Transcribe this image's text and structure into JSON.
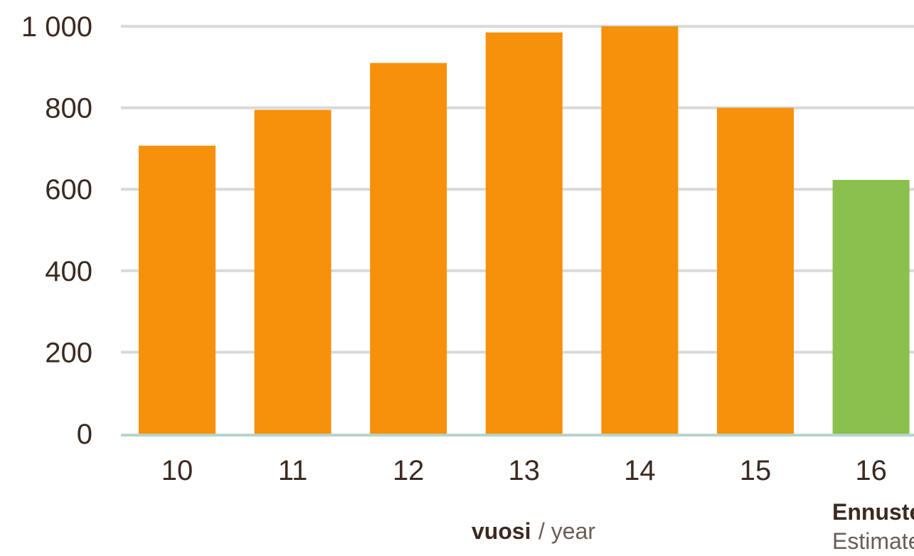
{
  "chart_data": {
    "type": "bar",
    "categories": [
      "10",
      "11",
      "12",
      "13",
      "14",
      "15",
      "16"
    ],
    "values": [
      707,
      795,
      910,
      985,
      1000,
      800,
      623
    ],
    "ylim": [
      0,
      1000
    ],
    "yticks": [
      0,
      200,
      400,
      600,
      800,
      1000
    ],
    "ytick_labels": [
      "0",
      "200",
      "400",
      "600",
      "800",
      "1 000"
    ],
    "grid": true,
    "colors": {
      "actual": "#F7900A",
      "estimate": "#8BBF4E",
      "grid": "#D9D9D9",
      "baseline": "#B7D3CC",
      "text": "#3B2A20"
    },
    "xlabel_bold": "vuosi",
    "xlabel_light": "/ year",
    "estimate_index": 6,
    "estimate_label_bold": "Ennuste",
    "estimate_label_light": "Estimate"
  }
}
